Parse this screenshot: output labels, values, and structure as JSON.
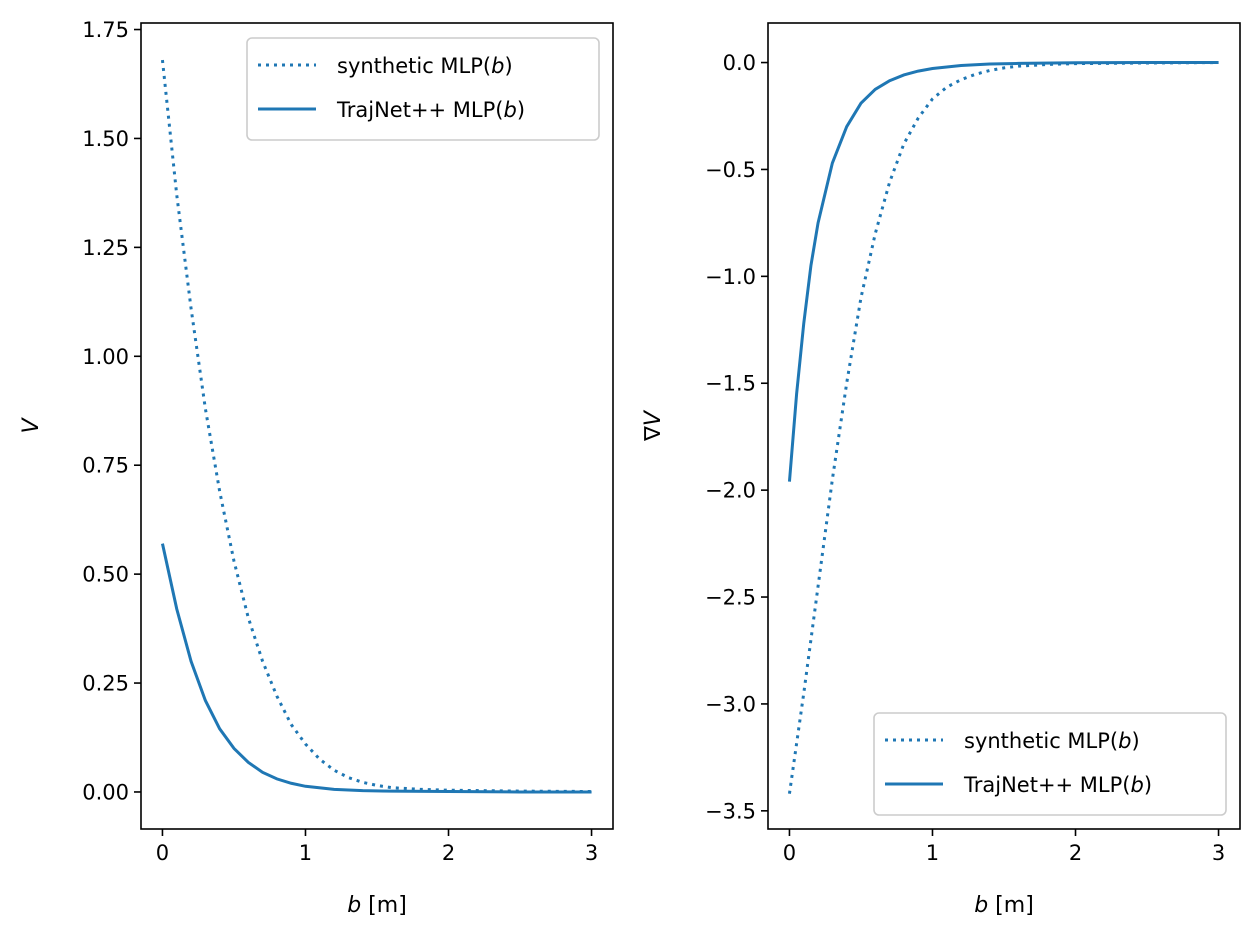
{
  "chart_data": [
    {
      "type": "line",
      "xlabel": "b [m]",
      "ylabel": "V",
      "xlim": [
        -0.15,
        3.15
      ],
      "ylim": [
        -0.085,
        1.765
      ],
      "xticks": [
        0,
        1,
        2,
        3
      ],
      "xtick_labels": [
        "0",
        "1",
        "2",
        "3"
      ],
      "yticks": [
        0.0,
        0.25,
        0.5,
        0.75,
        1.0,
        1.25,
        1.5,
        1.75
      ],
      "ytick_labels": [
        "0.00",
        "0.25",
        "0.50",
        "0.75",
        "1.00",
        "1.25",
        "1.50",
        "1.75"
      ],
      "grid": false,
      "legend_position": "top-right",
      "series": [
        {
          "name": "synthetic MLP(b)",
          "style": "dotted",
          "color": "#1f77b4",
          "x": [
            0,
            0.1,
            0.2,
            0.3,
            0.4,
            0.5,
            0.6,
            0.7,
            0.8,
            0.9,
            1.0,
            1.1,
            1.2,
            1.3,
            1.4,
            1.5,
            1.6,
            1.8,
            2.0,
            2.5,
            3.0
          ],
          "y": [
            1.68,
            1.37,
            1.11,
            0.88,
            0.69,
            0.53,
            0.4,
            0.3,
            0.22,
            0.155,
            0.11,
            0.075,
            0.05,
            0.033,
            0.022,
            0.015,
            0.01,
            0.006,
            0.004,
            0.002,
            0.001
          ]
        },
        {
          "name": "TrajNet++ MLP(b)",
          "style": "solid",
          "color": "#1f77b4",
          "x": [
            0,
            0.1,
            0.2,
            0.3,
            0.4,
            0.5,
            0.6,
            0.7,
            0.8,
            0.9,
            1.0,
            1.2,
            1.4,
            1.6,
            2.0,
            2.5,
            3.0
          ],
          "y": [
            0.57,
            0.42,
            0.3,
            0.21,
            0.145,
            0.1,
            0.068,
            0.045,
            0.03,
            0.02,
            0.013,
            0.006,
            0.003,
            0.002,
            0.001,
            0.0,
            0.0
          ]
        }
      ]
    },
    {
      "type": "line",
      "xlabel": "b [m]",
      "ylabel": "∇V",
      "xlim": [
        -0.15,
        3.15
      ],
      "ylim": [
        -3.585,
        0.185
      ],
      "xticks": [
        0,
        1,
        2,
        3
      ],
      "xtick_labels": [
        "0",
        "1",
        "2",
        "3"
      ],
      "yticks": [
        -3.5,
        -3.0,
        -2.5,
        -2.0,
        -1.5,
        -1.0,
        -0.5,
        0.0
      ],
      "ytick_labels": [
        "−3.5",
        "−3.0",
        "−2.5",
        "−2.0",
        "−1.5",
        "−1.0",
        "−0.5",
        "0.0"
      ],
      "grid": false,
      "legend_position": "bottom-right",
      "series": [
        {
          "name": "synthetic MLP(b)",
          "style": "dotted",
          "color": "#1f77b4",
          "x": [
            0,
            0.1,
            0.2,
            0.3,
            0.4,
            0.5,
            0.6,
            0.7,
            0.8,
            0.9,
            1.0,
            1.1,
            1.2,
            1.3,
            1.4,
            1.5,
            1.6,
            1.8,
            2.0,
            2.5,
            3.0
          ],
          "y": [
            -3.42,
            -2.95,
            -2.45,
            -1.95,
            -1.5,
            -1.1,
            -0.8,
            -0.56,
            -0.38,
            -0.26,
            -0.17,
            -0.115,
            -0.08,
            -0.055,
            -0.037,
            -0.025,
            -0.017,
            -0.009,
            -0.005,
            -0.002,
            0.0
          ]
        },
        {
          "name": "TrajNet++ MLP(b)",
          "style": "solid",
          "color": "#1f77b4",
          "x": [
            0,
            0.05,
            0.1,
            0.15,
            0.2,
            0.3,
            0.4,
            0.5,
            0.6,
            0.7,
            0.8,
            0.9,
            1.0,
            1.2,
            1.4,
            1.6,
            2.0,
            2.5,
            3.0
          ],
          "y": [
            -1.96,
            -1.55,
            -1.22,
            -0.95,
            -0.75,
            -0.47,
            -0.3,
            -0.19,
            -0.125,
            -0.085,
            -0.058,
            -0.04,
            -0.028,
            -0.014,
            -0.007,
            -0.004,
            -0.001,
            0.0,
            0.0
          ]
        }
      ]
    }
  ]
}
